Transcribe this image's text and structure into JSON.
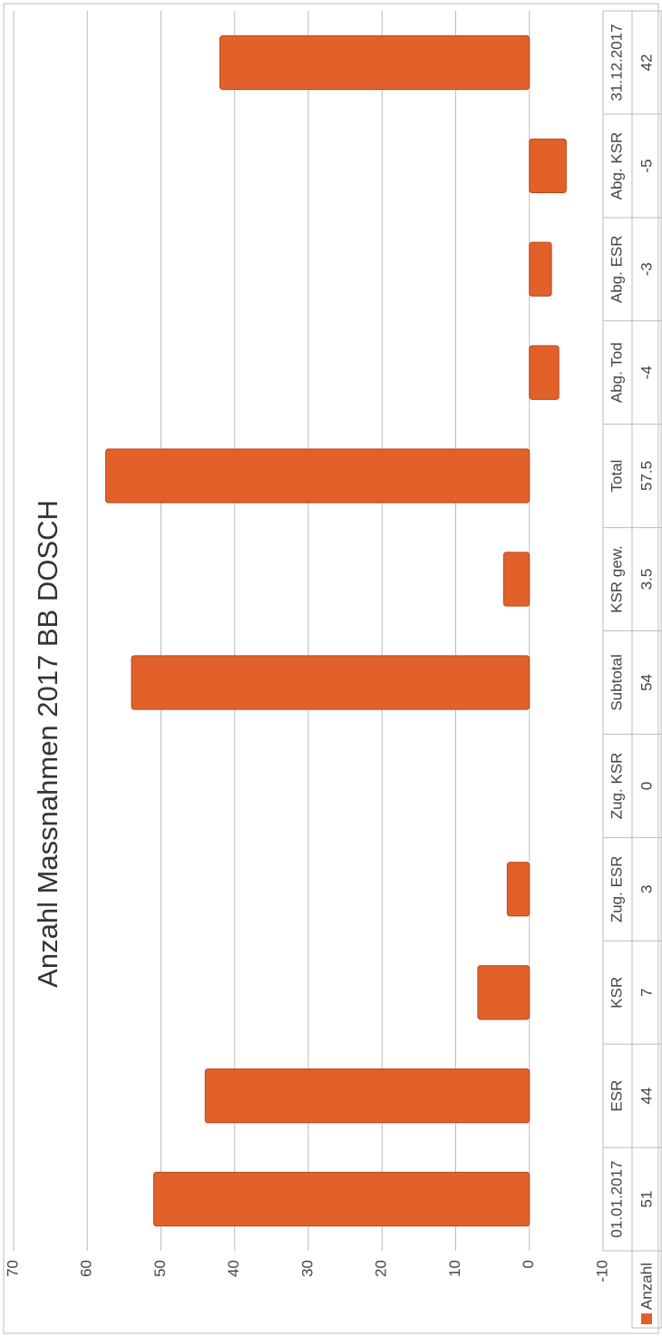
{
  "chart_data": {
    "type": "bar",
    "title": "Anzahl Massnahmen 2017   BB DOSCH",
    "categories": [
      "01.01.2017",
      "ESR",
      "KSR",
      "Zug. ESR",
      "Zug. KSR",
      "Subtotal",
      "KSR gew.",
      "Total",
      "Abg. Tod",
      "Abg. ESR",
      "Abg. KSR",
      "31.12.2017"
    ],
    "series": [
      {
        "name": "Anzahl",
        "color": "#e2602a",
        "values": [
          51,
          44,
          7,
          3,
          0,
          54,
          3.5,
          57.5,
          -4,
          -3,
          -5,
          42
        ]
      }
    ],
    "ylim": [
      -10,
      70
    ],
    "yticks": [
      -10,
      0,
      10,
      20,
      30,
      40,
      50,
      60,
      70
    ],
    "grid": true
  }
}
